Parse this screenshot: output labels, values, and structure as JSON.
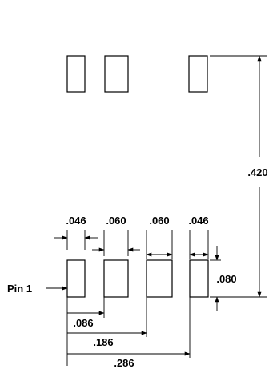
{
  "dimensions": {
    "w1": ".046",
    "w2": ".060",
    "w3": ".060",
    "w4": ".046",
    "pad_height": ".080",
    "row_spacing": ".420",
    "pitch_1": ".086",
    "pitch_2": ".186",
    "pitch_3": ".286"
  },
  "labels": {
    "pin1": "Pin 1"
  },
  "colors": {
    "ink": "#000000",
    "background": "#ffffff"
  }
}
